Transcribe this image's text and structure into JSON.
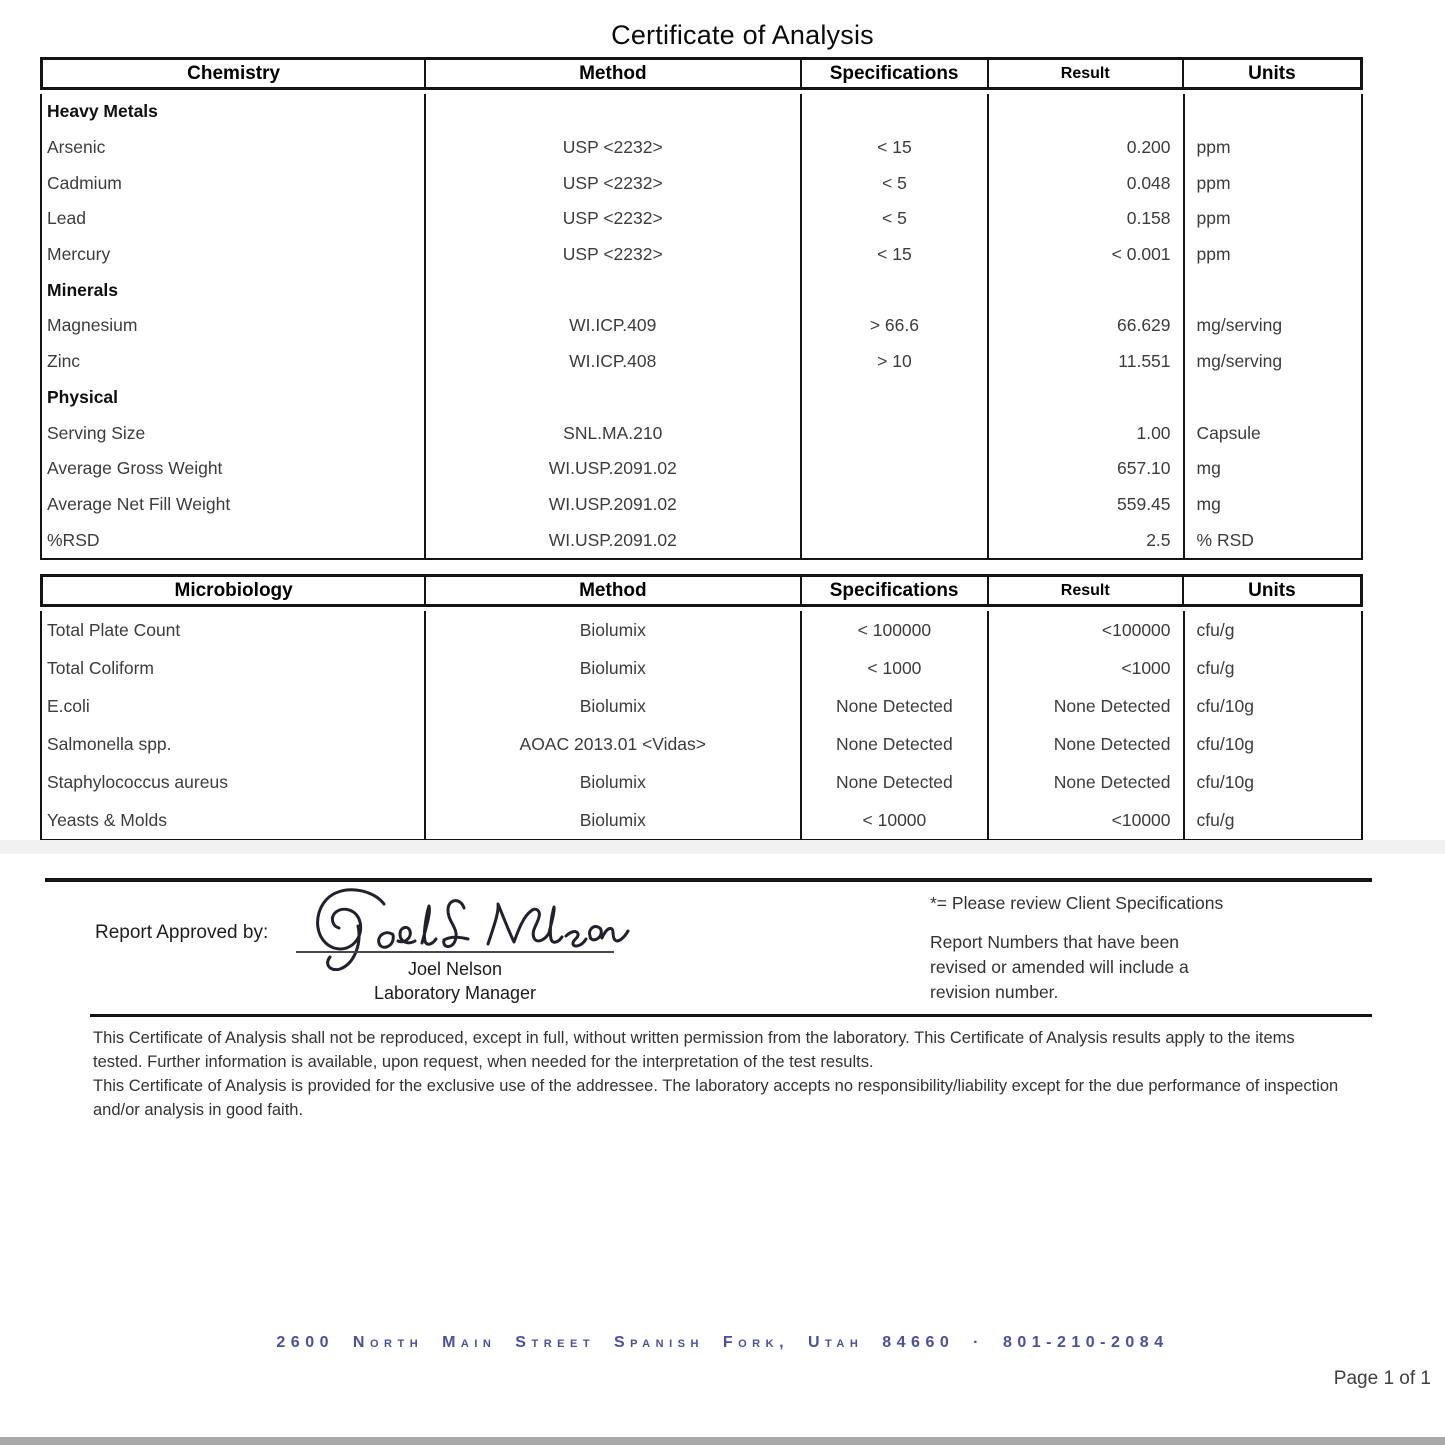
{
  "title": "Certificate of Analysis",
  "tables": [
    {
      "id": "chemistry",
      "headers": [
        "Chemistry",
        "Method",
        "Specifications",
        "Result",
        "Units"
      ],
      "rows": [
        {
          "type": "section",
          "name": "Heavy Metals"
        },
        {
          "type": "data",
          "name": "Arsenic",
          "method": "USP <2232>",
          "spec": "< 15",
          "result": "0.200",
          "units": "ppm"
        },
        {
          "type": "data",
          "name": "Cadmium",
          "method": "USP <2232>",
          "spec": "< 5",
          "result": "0.048",
          "units": "ppm"
        },
        {
          "type": "data",
          "name": "Lead",
          "method": "USP <2232>",
          "spec": "< 5",
          "result": "0.158",
          "units": "ppm"
        },
        {
          "type": "data",
          "name": "Mercury",
          "method": "USP <2232>",
          "spec": "< 15",
          "result": "< 0.001",
          "units": "ppm"
        },
        {
          "type": "section",
          "name": "Minerals"
        },
        {
          "type": "data",
          "name": "Magnesium",
          "method": "WI.ICP.409",
          "spec": "> 66.6",
          "result": "66.629",
          "units": "mg/serving"
        },
        {
          "type": "data",
          "name": "Zinc",
          "method": "WI.ICP.408",
          "spec": "> 10",
          "result": "11.551",
          "units": "mg/serving"
        },
        {
          "type": "section",
          "name": "Physical"
        },
        {
          "type": "data",
          "name": "Serving Size",
          "method": "SNL.MA.210",
          "spec": "",
          "result": "1.00",
          "units": "Capsule"
        },
        {
          "type": "data",
          "name": "Average Gross Weight",
          "method": "WI.USP.2091.02",
          "spec": "",
          "result": "657.10",
          "units": "mg"
        },
        {
          "type": "data",
          "name": "Average Net Fill Weight",
          "method": "WI.USP.2091.02",
          "spec": "",
          "result": "559.45",
          "units": "mg"
        },
        {
          "type": "data",
          "name": "%RSD",
          "method": "WI.USP.2091.02",
          "spec": "",
          "result": "2.5",
          "units": "% RSD"
        }
      ]
    },
    {
      "id": "microbiology",
      "headers": [
        "Microbiology",
        "Method",
        "Specifications",
        "Result",
        "Units"
      ],
      "rows": [
        {
          "type": "data",
          "name": "Total Plate Count",
          "method": "Biolumix",
          "spec": "< 100000",
          "result": "<100000",
          "units": "cfu/g"
        },
        {
          "type": "data",
          "name": "Total Coliform",
          "method": "Biolumix",
          "spec": "< 1000",
          "result": "<1000",
          "units": "cfu/g"
        },
        {
          "type": "data",
          "name": "E.coli",
          "method": "Biolumix",
          "spec": "None Detected",
          "result": "None Detected",
          "units": "cfu/10g"
        },
        {
          "type": "data",
          "name": "Salmonella spp.",
          "method": "AOAC 2013.01 <Vidas>",
          "spec": "None Detected",
          "result": "None Detected",
          "units": "cfu/10g"
        },
        {
          "type": "data",
          "name": "Staphylococcus aureus",
          "method": "Biolumix",
          "spec": "None Detected",
          "result": "None Detected",
          "units": "cfu/10g"
        },
        {
          "type": "data",
          "name": "Yeasts & Molds",
          "method": "Biolumix",
          "spec": "< 10000",
          "result": "<10000",
          "units": "cfu/g"
        }
      ]
    }
  ],
  "approval": {
    "label": "Report Approved by:",
    "signature_name": "Joel Nelson",
    "signature_title": "Laboratory Manager"
  },
  "notes": {
    "client_spec_note": "*= Please review Client Specifications",
    "revision_note": "Report Numbers that have been revised or amended will include a revision number."
  },
  "disclaimer": {
    "paragraph1": "This Certificate of Analysis shall not be reproduced, except in full, without written permission from the laboratory. This Certificate of Analysis results apply to the items tested. Further information is available, upon request, when needed for the interpretation of the test results.",
    "paragraph2": "This Certificate of Analysis is provided for the exclusive use of the addressee. The laboratory accepts no responsibility/liability except for the due performance of inspection and/or analysis in good faith."
  },
  "footer": {
    "address": "2600 North Main Street  Spanish Fork, Utah  84660 · 801-210-2084",
    "address_color": "#4b4f9d",
    "page": "Page 1 of 1"
  }
}
